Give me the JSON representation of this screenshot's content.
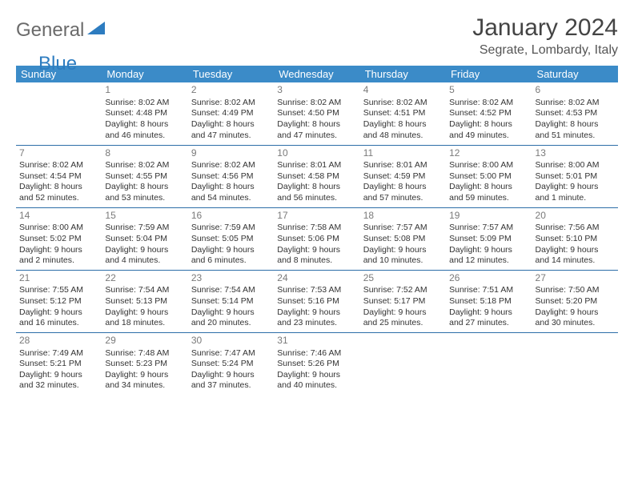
{
  "logo": {
    "main": "General",
    "accent": "Blue",
    "accent_color": "#2d7cc0",
    "main_color": "#6a6a6a"
  },
  "title": "January 2024",
  "location": "Segrate, Lombardy, Italy",
  "header_bg": "#3b8bc8",
  "header_fg": "#ffffff",
  "rule_color": "#2d6ea8",
  "text_color": "#333333",
  "daynum_color": "#7a7a7a",
  "font_family": "Arial",
  "title_fontsize": 30,
  "location_fontsize": 16,
  "header_fontsize": 13,
  "cell_fontsize": 10.5,
  "day_names": [
    "Sunday",
    "Monday",
    "Tuesday",
    "Wednesday",
    "Thursday",
    "Friday",
    "Saturday"
  ],
  "weeks": [
    [
      null,
      {
        "n": "1",
        "sr": "Sunrise: 8:02 AM",
        "ss": "Sunset: 4:48 PM",
        "d1": "Daylight: 8 hours",
        "d2": "and 46 minutes."
      },
      {
        "n": "2",
        "sr": "Sunrise: 8:02 AM",
        "ss": "Sunset: 4:49 PM",
        "d1": "Daylight: 8 hours",
        "d2": "and 47 minutes."
      },
      {
        "n": "3",
        "sr": "Sunrise: 8:02 AM",
        "ss": "Sunset: 4:50 PM",
        "d1": "Daylight: 8 hours",
        "d2": "and 47 minutes."
      },
      {
        "n": "4",
        "sr": "Sunrise: 8:02 AM",
        "ss": "Sunset: 4:51 PM",
        "d1": "Daylight: 8 hours",
        "d2": "and 48 minutes."
      },
      {
        "n": "5",
        "sr": "Sunrise: 8:02 AM",
        "ss": "Sunset: 4:52 PM",
        "d1": "Daylight: 8 hours",
        "d2": "and 49 minutes."
      },
      {
        "n": "6",
        "sr": "Sunrise: 8:02 AM",
        "ss": "Sunset: 4:53 PM",
        "d1": "Daylight: 8 hours",
        "d2": "and 51 minutes."
      }
    ],
    [
      {
        "n": "7",
        "sr": "Sunrise: 8:02 AM",
        "ss": "Sunset: 4:54 PM",
        "d1": "Daylight: 8 hours",
        "d2": "and 52 minutes."
      },
      {
        "n": "8",
        "sr": "Sunrise: 8:02 AM",
        "ss": "Sunset: 4:55 PM",
        "d1": "Daylight: 8 hours",
        "d2": "and 53 minutes."
      },
      {
        "n": "9",
        "sr": "Sunrise: 8:02 AM",
        "ss": "Sunset: 4:56 PM",
        "d1": "Daylight: 8 hours",
        "d2": "and 54 minutes."
      },
      {
        "n": "10",
        "sr": "Sunrise: 8:01 AM",
        "ss": "Sunset: 4:58 PM",
        "d1": "Daylight: 8 hours",
        "d2": "and 56 minutes."
      },
      {
        "n": "11",
        "sr": "Sunrise: 8:01 AM",
        "ss": "Sunset: 4:59 PM",
        "d1": "Daylight: 8 hours",
        "d2": "and 57 minutes."
      },
      {
        "n": "12",
        "sr": "Sunrise: 8:00 AM",
        "ss": "Sunset: 5:00 PM",
        "d1": "Daylight: 8 hours",
        "d2": "and 59 minutes."
      },
      {
        "n": "13",
        "sr": "Sunrise: 8:00 AM",
        "ss": "Sunset: 5:01 PM",
        "d1": "Daylight: 9 hours",
        "d2": "and 1 minute."
      }
    ],
    [
      {
        "n": "14",
        "sr": "Sunrise: 8:00 AM",
        "ss": "Sunset: 5:02 PM",
        "d1": "Daylight: 9 hours",
        "d2": "and 2 minutes."
      },
      {
        "n": "15",
        "sr": "Sunrise: 7:59 AM",
        "ss": "Sunset: 5:04 PM",
        "d1": "Daylight: 9 hours",
        "d2": "and 4 minutes."
      },
      {
        "n": "16",
        "sr": "Sunrise: 7:59 AM",
        "ss": "Sunset: 5:05 PM",
        "d1": "Daylight: 9 hours",
        "d2": "and 6 minutes."
      },
      {
        "n": "17",
        "sr": "Sunrise: 7:58 AM",
        "ss": "Sunset: 5:06 PM",
        "d1": "Daylight: 9 hours",
        "d2": "and 8 minutes."
      },
      {
        "n": "18",
        "sr": "Sunrise: 7:57 AM",
        "ss": "Sunset: 5:08 PM",
        "d1": "Daylight: 9 hours",
        "d2": "and 10 minutes."
      },
      {
        "n": "19",
        "sr": "Sunrise: 7:57 AM",
        "ss": "Sunset: 5:09 PM",
        "d1": "Daylight: 9 hours",
        "d2": "and 12 minutes."
      },
      {
        "n": "20",
        "sr": "Sunrise: 7:56 AM",
        "ss": "Sunset: 5:10 PM",
        "d1": "Daylight: 9 hours",
        "d2": "and 14 minutes."
      }
    ],
    [
      {
        "n": "21",
        "sr": "Sunrise: 7:55 AM",
        "ss": "Sunset: 5:12 PM",
        "d1": "Daylight: 9 hours",
        "d2": "and 16 minutes."
      },
      {
        "n": "22",
        "sr": "Sunrise: 7:54 AM",
        "ss": "Sunset: 5:13 PM",
        "d1": "Daylight: 9 hours",
        "d2": "and 18 minutes."
      },
      {
        "n": "23",
        "sr": "Sunrise: 7:54 AM",
        "ss": "Sunset: 5:14 PM",
        "d1": "Daylight: 9 hours",
        "d2": "and 20 minutes."
      },
      {
        "n": "24",
        "sr": "Sunrise: 7:53 AM",
        "ss": "Sunset: 5:16 PM",
        "d1": "Daylight: 9 hours",
        "d2": "and 23 minutes."
      },
      {
        "n": "25",
        "sr": "Sunrise: 7:52 AM",
        "ss": "Sunset: 5:17 PM",
        "d1": "Daylight: 9 hours",
        "d2": "and 25 minutes."
      },
      {
        "n": "26",
        "sr": "Sunrise: 7:51 AM",
        "ss": "Sunset: 5:18 PM",
        "d1": "Daylight: 9 hours",
        "d2": "and 27 minutes."
      },
      {
        "n": "27",
        "sr": "Sunrise: 7:50 AM",
        "ss": "Sunset: 5:20 PM",
        "d1": "Daylight: 9 hours",
        "d2": "and 30 minutes."
      }
    ],
    [
      {
        "n": "28",
        "sr": "Sunrise: 7:49 AM",
        "ss": "Sunset: 5:21 PM",
        "d1": "Daylight: 9 hours",
        "d2": "and 32 minutes."
      },
      {
        "n": "29",
        "sr": "Sunrise: 7:48 AM",
        "ss": "Sunset: 5:23 PM",
        "d1": "Daylight: 9 hours",
        "d2": "and 34 minutes."
      },
      {
        "n": "30",
        "sr": "Sunrise: 7:47 AM",
        "ss": "Sunset: 5:24 PM",
        "d1": "Daylight: 9 hours",
        "d2": "and 37 minutes."
      },
      {
        "n": "31",
        "sr": "Sunrise: 7:46 AM",
        "ss": "Sunset: 5:26 PM",
        "d1": "Daylight: 9 hours",
        "d2": "and 40 minutes."
      },
      null,
      null,
      null
    ]
  ]
}
